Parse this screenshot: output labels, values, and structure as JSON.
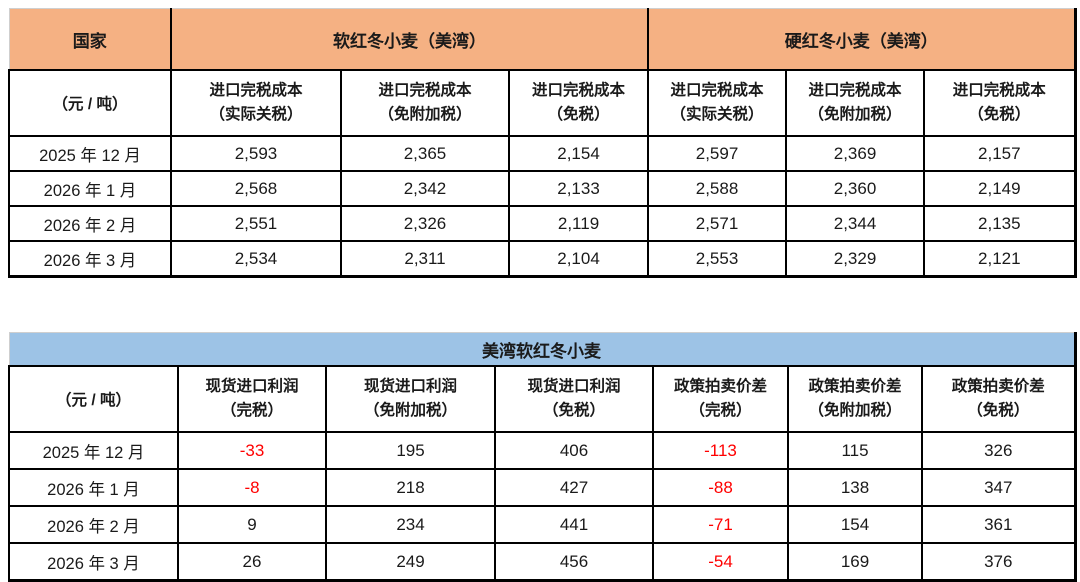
{
  "colors": {
    "orange_header": "#F5B183",
    "blue_header": "#9DC3E6",
    "negative_value": "#FF0000",
    "border": "#000000"
  },
  "table1": {
    "country_label": "国家",
    "unit_label": "（元 / 吨）",
    "group_headers": [
      {
        "label": "软红冬小麦（美湾）"
      },
      {
        "label": "硬红冬小麦（美湾）"
      }
    ],
    "column_headers": [
      {
        "line1": "进口完税成本",
        "line2": "（实际关税）"
      },
      {
        "line1": "进口完税成本",
        "line2": "（免附加税）"
      },
      {
        "line1": "进口完税成本",
        "line2": "（免税）"
      },
      {
        "line1": "进口完税成本",
        "line2": "（实际关税）"
      },
      {
        "line1": "进口完税成本",
        "line2": "（免附加税）"
      },
      {
        "line1": "进口完税成本",
        "line2": "（免税）"
      }
    ],
    "rows": [
      [
        "2025 年 12 月",
        "2,593",
        "2,365",
        "2,154",
        "2,597",
        "2,369",
        "2,157"
      ],
      [
        "2026 年 1 月",
        "2,568",
        "2,342",
        "2,133",
        "2,588",
        "2,360",
        "2,149"
      ],
      [
        "2026 年 2 月",
        "2,551",
        "2,326",
        "2,119",
        "2,571",
        "2,344",
        "2,135"
      ],
      [
        "2026 年 3 月",
        "2,534",
        "2,311",
        "2,104",
        "2,553",
        "2,329",
        "2,121"
      ]
    ]
  },
  "table2": {
    "title": "美湾软红冬小麦",
    "unit_label": "（元 / 吨）",
    "column_headers": [
      {
        "line1": "现货进口利润",
        "line2": "（完税）"
      },
      {
        "line1": "现货进口利润",
        "line2": "（免附加税）"
      },
      {
        "line1": "现货进口利润",
        "line2": "（免税）"
      },
      {
        "line1": "政策拍卖价差",
        "line2": "（完税）"
      },
      {
        "line1": "政策拍卖价差",
        "line2": "（免附加税）"
      },
      {
        "line1": "政策拍卖价差",
        "line2": "（免税）"
      }
    ],
    "rows": [
      [
        "2025 年 12 月",
        "-33",
        "195",
        "406",
        "-113",
        "115",
        "326"
      ],
      [
        "2026 年 1 月",
        "-8",
        "218",
        "427",
        "-88",
        "138",
        "347"
      ],
      [
        "2026 年 2 月",
        "9",
        "234",
        "441",
        "-71",
        "154",
        "361"
      ],
      [
        "2026 年 3 月",
        "26",
        "249",
        "456",
        "-54",
        "169",
        "376"
      ]
    ]
  }
}
